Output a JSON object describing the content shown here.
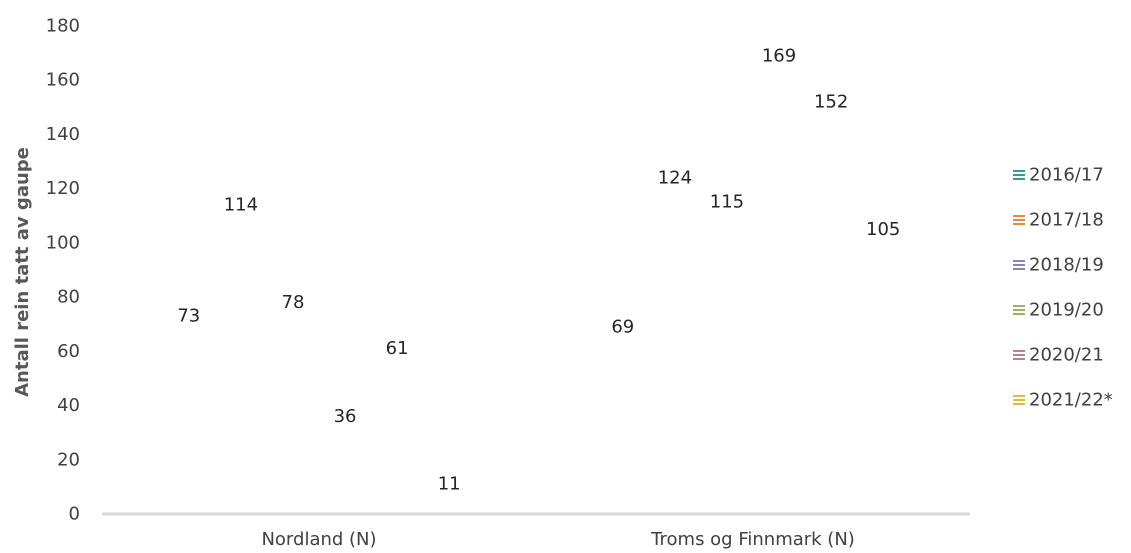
{
  "chart_data": {
    "type": "bar",
    "ylabel": "Antall rein tatt av gaupe",
    "ylim": [
      0,
      180
    ],
    "yticks": [
      0,
      20,
      40,
      60,
      80,
      100,
      120,
      140,
      160,
      180
    ],
    "grid": false,
    "legend_position": "right",
    "categories": [
      "Nordland (N)",
      "Troms og Finnmark (N)"
    ],
    "series": [
      {
        "name": "2016/17",
        "values": [
          73,
          69
        ],
        "color": "#2e9e96"
      },
      {
        "name": "2017/18",
        "values": [
          114,
          124
        ],
        "color": "#f0883a"
      },
      {
        "name": "2018/19",
        "values": [
          78,
          115
        ],
        "color": "#8a86b3"
      },
      {
        "name": "2019/20",
        "values": [
          36,
          169
        ],
        "color": "#94b85a"
      },
      {
        "name": "2020/21",
        "values": [
          61,
          152
        ],
        "color": "#c07e94"
      },
      {
        "name": "2021/22*",
        "values": [
          11,
          105
        ],
        "color": "#e8b83a"
      }
    ]
  }
}
